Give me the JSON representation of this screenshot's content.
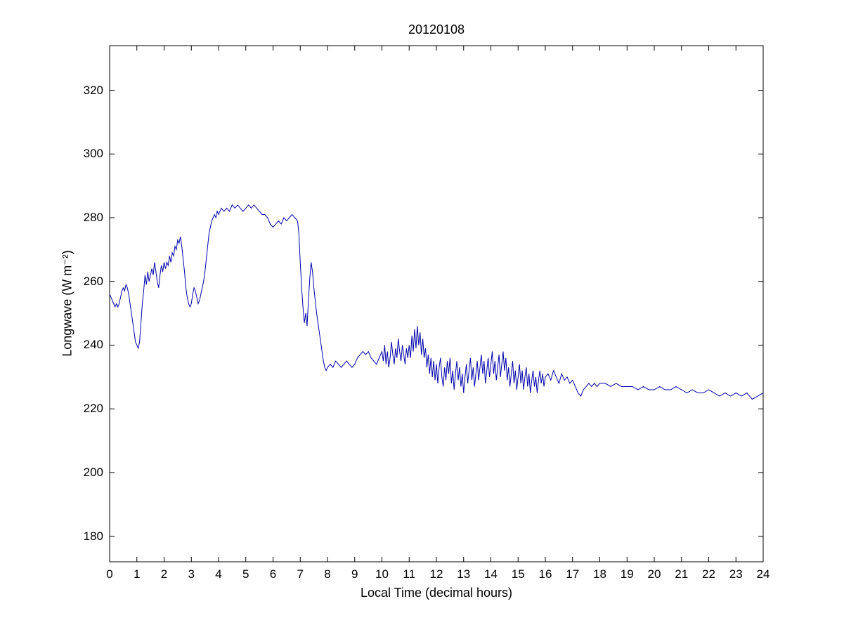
{
  "chart_data": {
    "type": "line",
    "title": "20120108",
    "xlabel": "Local Time (decimal hours)",
    "ylabel": "Longwave (W m⁻²)",
    "xlim": [
      0,
      24
    ],
    "ylim": [
      172,
      334
    ],
    "x_ticks": [
      0,
      1,
      2,
      3,
      4,
      5,
      6,
      7,
      8,
      9,
      10,
      11,
      12,
      13,
      14,
      15,
      16,
      17,
      18,
      19,
      20,
      21,
      22,
      23,
      24
    ],
    "y_ticks": [
      180,
      200,
      220,
      240,
      260,
      280,
      300,
      320
    ],
    "grid": false,
    "legend": "none",
    "line_color": "#0000AA",
    "axis_color": "#000000",
    "background_color": "#ffffff",
    "series": [
      {
        "name": "longwave",
        "points": [
          [
            0.0,
            256
          ],
          [
            0.05,
            255
          ],
          [
            0.1,
            254
          ],
          [
            0.15,
            253
          ],
          [
            0.2,
            252
          ],
          [
            0.25,
            253
          ],
          [
            0.3,
            252
          ],
          [
            0.35,
            253
          ],
          [
            0.4,
            255
          ],
          [
            0.45,
            257
          ],
          [
            0.5,
            258
          ],
          [
            0.55,
            257
          ],
          [
            0.6,
            259
          ],
          [
            0.65,
            258
          ],
          [
            0.7,
            256
          ],
          [
            0.75,
            253
          ],
          [
            0.8,
            250
          ],
          [
            0.85,
            247
          ],
          [
            0.9,
            244
          ],
          [
            0.95,
            241
          ],
          [
            1.0,
            240
          ],
          [
            1.05,
            239
          ],
          [
            1.1,
            241
          ],
          [
            1.15,
            247
          ],
          [
            1.2,
            253
          ],
          [
            1.25,
            257
          ],
          [
            1.3,
            262
          ],
          [
            1.35,
            259
          ],
          [
            1.4,
            263
          ],
          [
            1.45,
            260
          ],
          [
            1.5,
            262
          ],
          [
            1.55,
            264
          ],
          [
            1.6,
            262
          ],
          [
            1.65,
            266
          ],
          [
            1.7,
            263
          ],
          [
            1.75,
            260
          ],
          [
            1.8,
            258
          ],
          [
            1.85,
            262
          ],
          [
            1.9,
            265
          ],
          [
            1.95,
            263
          ],
          [
            2.0,
            266
          ],
          [
            2.05,
            264
          ],
          [
            2.1,
            266
          ],
          [
            2.15,
            265
          ],
          [
            2.2,
            268
          ],
          [
            2.25,
            266
          ],
          [
            2.3,
            269
          ],
          [
            2.35,
            268
          ],
          [
            2.4,
            271
          ],
          [
            2.45,
            270
          ],
          [
            2.5,
            273
          ],
          [
            2.55,
            272
          ],
          [
            2.6,
            274
          ],
          [
            2.65,
            271
          ],
          [
            2.7,
            267
          ],
          [
            2.75,
            263
          ],
          [
            2.8,
            258
          ],
          [
            2.85,
            255
          ],
          [
            2.9,
            253
          ],
          [
            2.95,
            252
          ],
          [
            3.0,
            253
          ],
          [
            3.05,
            256
          ],
          [
            3.1,
            258
          ],
          [
            3.15,
            257
          ],
          [
            3.2,
            255
          ],
          [
            3.25,
            253
          ],
          [
            3.3,
            254
          ],
          [
            3.35,
            256
          ],
          [
            3.4,
            258
          ],
          [
            3.45,
            260
          ],
          [
            3.5,
            263
          ],
          [
            3.55,
            267
          ],
          [
            3.6,
            271
          ],
          [
            3.65,
            275
          ],
          [
            3.7,
            277
          ],
          [
            3.75,
            279
          ],
          [
            3.8,
            280
          ],
          [
            3.85,
            281
          ],
          [
            3.9,
            280
          ],
          [
            3.95,
            282
          ],
          [
            4.0,
            281
          ],
          [
            4.05,
            282
          ],
          [
            4.1,
            283
          ],
          [
            4.2,
            282
          ],
          [
            4.3,
            283
          ],
          [
            4.4,
            282
          ],
          [
            4.5,
            284
          ],
          [
            4.6,
            283
          ],
          [
            4.7,
            284
          ],
          [
            4.8,
            283
          ],
          [
            4.9,
            282
          ],
          [
            5.0,
            283
          ],
          [
            5.1,
            284
          ],
          [
            5.2,
            283
          ],
          [
            5.3,
            284
          ],
          [
            5.4,
            283
          ],
          [
            5.5,
            282
          ],
          [
            5.6,
            281
          ],
          [
            5.7,
            281
          ],
          [
            5.8,
            280
          ],
          [
            5.9,
            278
          ],
          [
            6.0,
            277
          ],
          [
            6.1,
            278
          ],
          [
            6.2,
            279
          ],
          [
            6.3,
            278
          ],
          [
            6.4,
            280
          ],
          [
            6.5,
            279
          ],
          [
            6.6,
            280
          ],
          [
            6.7,
            281
          ],
          [
            6.8,
            280
          ],
          [
            6.9,
            279
          ],
          [
            6.95,
            275
          ],
          [
            7.0,
            266
          ],
          [
            7.05,
            258
          ],
          [
            7.1,
            252
          ],
          [
            7.15,
            247
          ],
          [
            7.2,
            250
          ],
          [
            7.25,
            246
          ],
          [
            7.3,
            254
          ],
          [
            7.35,
            261
          ],
          [
            7.4,
            266
          ],
          [
            7.45,
            263
          ],
          [
            7.5,
            258
          ],
          [
            7.55,
            254
          ],
          [
            7.6,
            250
          ],
          [
            7.65,
            247
          ],
          [
            7.7,
            244
          ],
          [
            7.75,
            241
          ],
          [
            7.8,
            238
          ],
          [
            7.85,
            235
          ],
          [
            7.9,
            233
          ],
          [
            7.95,
            232
          ],
          [
            8.0,
            233
          ],
          [
            8.1,
            234
          ],
          [
            8.2,
            233
          ],
          [
            8.3,
            235
          ],
          [
            8.4,
            234
          ],
          [
            8.5,
            233
          ],
          [
            8.6,
            234
          ],
          [
            8.7,
            235
          ],
          [
            8.8,
            234
          ],
          [
            8.9,
            233
          ],
          [
            9.0,
            234
          ],
          [
            9.1,
            236
          ],
          [
            9.2,
            237
          ],
          [
            9.3,
            238
          ],
          [
            9.4,
            237
          ],
          [
            9.5,
            238
          ],
          [
            9.6,
            236
          ],
          [
            9.7,
            235
          ],
          [
            9.8,
            234
          ],
          [
            9.9,
            236
          ],
          [
            10.0,
            238
          ],
          [
            10.05,
            235
          ],
          [
            10.1,
            240
          ],
          [
            10.15,
            234
          ],
          [
            10.2,
            238
          ],
          [
            10.25,
            233
          ],
          [
            10.3,
            236
          ],
          [
            10.35,
            241
          ],
          [
            10.4,
            237
          ],
          [
            10.45,
            234
          ],
          [
            10.5,
            239
          ],
          [
            10.55,
            236
          ],
          [
            10.6,
            242
          ],
          [
            10.65,
            238
          ],
          [
            10.7,
            235
          ],
          [
            10.75,
            240
          ],
          [
            10.8,
            237
          ],
          [
            10.85,
            234
          ],
          [
            10.9,
            239
          ],
          [
            10.95,
            236
          ],
          [
            11.0,
            240
          ],
          [
            11.05,
            236
          ],
          [
            11.1,
            243
          ],
          [
            11.15,
            238
          ],
          [
            11.2,
            245
          ],
          [
            11.25,
            239
          ],
          [
            11.3,
            246
          ],
          [
            11.35,
            240
          ],
          [
            11.4,
            244
          ],
          [
            11.45,
            237
          ],
          [
            11.5,
            242
          ],
          [
            11.55,
            236
          ],
          [
            11.6,
            239
          ],
          [
            11.65,
            233
          ],
          [
            11.7,
            237
          ],
          [
            11.75,
            231
          ],
          [
            11.8,
            236
          ],
          [
            11.85,
            230
          ],
          [
            11.9,
            235
          ],
          [
            11.95,
            229
          ],
          [
            12.0,
            234
          ],
          [
            12.05,
            228
          ],
          [
            12.1,
            233
          ],
          [
            12.15,
            236
          ],
          [
            12.2,
            230
          ],
          [
            12.25,
            227
          ],
          [
            12.3,
            233
          ],
          [
            12.35,
            229
          ],
          [
            12.4,
            235
          ],
          [
            12.45,
            231
          ],
          [
            12.5,
            236
          ],
          [
            12.55,
            228
          ],
          [
            12.6,
            232
          ],
          [
            12.65,
            226
          ],
          [
            12.7,
            231
          ],
          [
            12.75,
            235
          ],
          [
            12.8,
            229
          ],
          [
            12.85,
            233
          ],
          [
            12.9,
            227
          ],
          [
            12.95,
            231
          ],
          [
            13.0,
            225
          ],
          [
            13.05,
            230
          ],
          [
            13.1,
            234
          ],
          [
            13.15,
            228
          ],
          [
            13.2,
            232
          ],
          [
            13.25,
            236
          ],
          [
            13.3,
            229
          ],
          [
            13.35,
            233
          ],
          [
            13.4,
            227
          ],
          [
            13.45,
            231
          ],
          [
            13.5,
            235
          ],
          [
            13.55,
            229
          ],
          [
            13.6,
            233
          ],
          [
            13.65,
            237
          ],
          [
            13.7,
            231
          ],
          [
            13.75,
            235
          ],
          [
            13.8,
            228
          ],
          [
            13.85,
            232
          ],
          [
            13.9,
            236
          ],
          [
            13.95,
            230
          ],
          [
            14.0,
            234
          ],
          [
            14.05,
            238
          ],
          [
            14.1,
            231
          ],
          [
            14.15,
            235
          ],
          [
            14.2,
            229
          ],
          [
            14.25,
            233
          ],
          [
            14.3,
            237
          ],
          [
            14.35,
            230
          ],
          [
            14.4,
            234
          ],
          [
            14.45,
            238
          ],
          [
            14.5,
            232
          ],
          [
            14.55,
            236
          ],
          [
            14.6,
            229
          ],
          [
            14.65,
            233
          ],
          [
            14.7,
            227
          ],
          [
            14.75,
            231
          ],
          [
            14.8,
            235
          ],
          [
            14.85,
            228
          ],
          [
            14.9,
            232
          ],
          [
            14.95,
            226
          ],
          [
            15.0,
            230
          ],
          [
            15.05,
            234
          ],
          [
            15.1,
            228
          ],
          [
            15.15,
            232
          ],
          [
            15.2,
            226
          ],
          [
            15.25,
            230
          ],
          [
            15.3,
            233
          ],
          [
            15.35,
            227
          ],
          [
            15.4,
            231
          ],
          [
            15.45,
            225
          ],
          [
            15.5,
            229
          ],
          [
            15.55,
            232
          ],
          [
            15.6,
            227
          ],
          [
            15.65,
            230
          ],
          [
            15.7,
            225
          ],
          [
            15.75,
            229
          ],
          [
            15.8,
            232
          ],
          [
            15.85,
            228
          ],
          [
            15.9,
            231
          ],
          [
            15.95,
            227
          ],
          [
            16.0,
            230
          ],
          [
            16.1,
            231
          ],
          [
            16.2,
            229
          ],
          [
            16.3,
            232
          ],
          [
            16.4,
            230
          ],
          [
            16.5,
            228
          ],
          [
            16.6,
            231
          ],
          [
            16.7,
            229
          ],
          [
            16.8,
            230
          ],
          [
            16.9,
            228
          ],
          [
            17.0,
            229
          ],
          [
            17.1,
            227
          ],
          [
            17.2,
            225
          ],
          [
            17.3,
            224
          ],
          [
            17.4,
            226
          ],
          [
            17.5,
            227
          ],
          [
            17.6,
            228
          ],
          [
            17.7,
            227
          ],
          [
            17.8,
            228
          ],
          [
            17.9,
            227
          ],
          [
            18.0,
            228
          ],
          [
            18.2,
            228
          ],
          [
            18.4,
            227
          ],
          [
            18.6,
            228
          ],
          [
            18.8,
            227
          ],
          [
            19.0,
            227
          ],
          [
            19.2,
            227
          ],
          [
            19.4,
            226
          ],
          [
            19.6,
            227
          ],
          [
            19.8,
            226
          ],
          [
            20.0,
            226
          ],
          [
            20.2,
            227
          ],
          [
            20.4,
            226
          ],
          [
            20.6,
            226
          ],
          [
            20.8,
            227
          ],
          [
            21.0,
            226
          ],
          [
            21.2,
            225
          ],
          [
            21.4,
            226
          ],
          [
            21.6,
            225
          ],
          [
            21.8,
            225
          ],
          [
            22.0,
            226
          ],
          [
            22.2,
            225
          ],
          [
            22.4,
            224
          ],
          [
            22.6,
            225
          ],
          [
            22.8,
            224
          ],
          [
            23.0,
            225
          ],
          [
            23.2,
            224
          ],
          [
            23.4,
            225
          ],
          [
            23.6,
            223
          ],
          [
            23.8,
            224
          ],
          [
            24.0,
            225
          ]
        ]
      }
    ]
  }
}
